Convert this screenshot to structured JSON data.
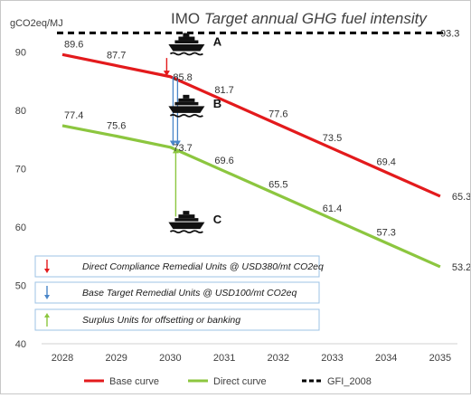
{
  "chart_data": {
    "type": "line",
    "title_prefix": "IMO",
    "title_italic": "Target annual GHG fuel intensity",
    "ylabel": "gCO2eq/MJ",
    "ylim": [
      40,
      96
    ],
    "yticks": [
      40,
      50,
      60,
      70,
      80,
      90
    ],
    "categories": [
      "2028",
      "2029",
      "2030",
      "2031",
      "2032",
      "2033",
      "2034",
      "2035"
    ],
    "series": [
      {
        "name": "Base curve",
        "color": "#e31a1c",
        "dash": "solid",
        "values": [
          89.6,
          87.7,
          85.8,
          81.7,
          77.6,
          73.5,
          69.4,
          65.3
        ]
      },
      {
        "name": "Direct curve",
        "color": "#8cc63f",
        "dash": "solid",
        "values": [
          77.4,
          75.6,
          73.7,
          69.6,
          65.5,
          61.4,
          57.3,
          53.2
        ]
      },
      {
        "name": "GFI_2008",
        "color": "#000000",
        "dash": "dashed",
        "values": [
          93.3,
          93.3,
          93.3,
          93.3,
          93.3,
          93.3,
          93.3,
          93.3
        ]
      }
    ],
    "gfi_label": "93.3",
    "legend_position": "bottom",
    "grid": false,
    "annotations": {
      "ships": [
        {
          "label": "A",
          "category": "2030",
          "y": 90.8
        },
        {
          "label": "B",
          "category": "2030",
          "y": 80.2
        },
        {
          "label": "C",
          "category": "2030",
          "y": 60.3
        }
      ],
      "arrows": [
        {
          "type": "red-down",
          "color": "#e31a1c",
          "from_y": 89.0,
          "to_y": 85.9
        },
        {
          "type": "blue-down",
          "color": "#4a86c8",
          "from_y": 85.8,
          "to_y": 73.9
        },
        {
          "type": "green-up",
          "color": "#8cc63f",
          "from_y": 61.8,
          "to_y": 73.6
        }
      ],
      "info_boxes": [
        {
          "arrow_color": "#e31a1c",
          "direction": "down",
          "text": "Direct Compliance Remedial Units @ USD380/mt CO2eq"
        },
        {
          "arrow_color": "#4a86c8",
          "direction": "down",
          "text": "Base Target Remedial Units @ USD100/mt CO2eq"
        },
        {
          "arrow_color": "#8cc63f",
          "direction": "up",
          "text": "Surplus Units for offsetting or banking"
        }
      ]
    }
  }
}
